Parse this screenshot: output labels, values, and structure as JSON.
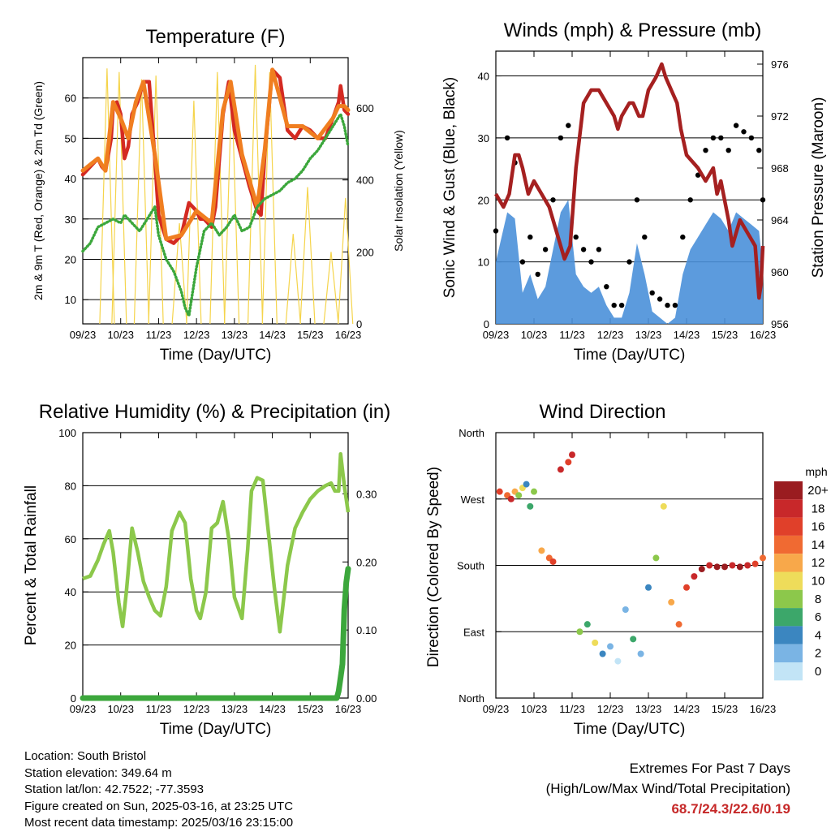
{
  "chart_data": [
    {
      "type": "line",
      "title": "Temperature (F)",
      "xlabel": "Time (Day/UTC)",
      "ylabel": "2m & 9m T (Red, Orange) & 2m Td (Green)",
      "y2label": "Solar Insolation (Yellow)",
      "x_ticks": [
        "09/23",
        "10/23",
        "11/23",
        "12/23",
        "13/23",
        "14/23",
        "15/23",
        "16/23"
      ],
      "ylim": [
        4,
        70
      ],
      "y_ticks": [
        10,
        20,
        30,
        40,
        50,
        60
      ],
      "y2lim": [
        0,
        740
      ],
      "y2_ticks": [
        0,
        200,
        400,
        600
      ],
      "grid": "horizontal",
      "series": [
        {
          "name": "2m T",
          "color": "#d42a22",
          "x": [
            0,
            0.2,
            0.4,
            0.5,
            0.6,
            0.75,
            0.8,
            0.9,
            1.0,
            1.1,
            1.2,
            1.3,
            1.45,
            1.6,
            1.75,
            1.9,
            2.0,
            2.2,
            2.4,
            2.6,
            2.8,
            3.0,
            3.1,
            3.2,
            3.4,
            3.5,
            3.7,
            3.85,
            4.0,
            4.2,
            4.4,
            4.6,
            4.7,
            4.8,
            5.0,
            5.2,
            5.4,
            5.6,
            5.8,
            6.0,
            6.2,
            6.4,
            6.6,
            6.75,
            6.8,
            6.85,
            6.9,
            7.0
          ],
          "y": [
            41,
            43,
            45,
            43,
            42,
            50,
            58,
            59,
            56,
            45,
            48,
            56,
            59,
            64,
            64,
            45,
            31,
            25,
            24,
            26,
            34,
            32,
            30,
            30,
            28,
            33,
            56,
            64,
            52,
            45,
            38,
            32,
            31,
            46,
            67,
            65,
            52,
            50,
            53,
            52,
            50,
            50,
            55,
            59,
            63,
            60,
            57,
            56
          ]
        },
        {
          "name": "9m T",
          "color": "#f07e20",
          "x": [
            0,
            0.4,
            0.6,
            0.8,
            1.0,
            1.2,
            1.4,
            1.6,
            1.9,
            2.2,
            2.6,
            3.0,
            3.4,
            3.7,
            3.9,
            4.2,
            4.6,
            4.8,
            5.0,
            5.4,
            5.8,
            6.2,
            6.6,
            6.75,
            6.9,
            7.0
          ],
          "y": [
            42,
            45,
            42,
            59,
            55,
            50,
            59,
            64,
            46,
            25,
            26,
            32,
            29,
            57,
            64,
            46,
            33,
            47,
            67,
            53,
            53,
            50,
            55,
            58,
            58,
            57
          ]
        },
        {
          "name": "2m Td",
          "color": "#3ca73c",
          "x": [
            0,
            0.2,
            0.4,
            0.6,
            0.8,
            1.0,
            1.1,
            1.3,
            1.5,
            1.7,
            1.9,
            2.0,
            2.2,
            2.4,
            2.6,
            2.7,
            2.8,
            2.9,
            3.0,
            3.2,
            3.4,
            3.6,
            3.8,
            4.0,
            4.2,
            4.4,
            4.6,
            4.8,
            5.0,
            5.2,
            5.4,
            5.6,
            5.8,
            6.0,
            6.2,
            6.4,
            6.6,
            6.8,
            6.9,
            7.0
          ],
          "y": [
            22,
            24,
            28,
            29,
            30,
            29,
            31,
            29,
            27,
            30,
            33,
            26,
            20,
            17,
            12,
            8,
            6,
            12,
            18,
            27,
            29,
            26,
            28,
            31,
            27,
            28,
            33,
            35,
            36,
            37,
            39,
            40,
            42,
            45,
            47,
            50,
            53,
            56,
            53,
            48
          ]
        },
        {
          "name": "Solar Insolation",
          "color": "#f5d44b",
          "axis": "y2",
          "x": [
            0.64,
            0.96,
            1.55,
            1.93,
            2.55,
            2.93,
            3.55,
            3.93,
            4.55,
            4.93,
            5.55,
            5.93,
            6.55,
            6.93
          ],
          "y": [
            710,
            700,
            680,
            690,
            280,
            620,
            700,
            660,
            720,
            700,
            250,
            380,
            200,
            350
          ]
        }
      ]
    },
    {
      "type": "line",
      "title": "Winds (mph) & Pressure (mb)",
      "xlabel": "Time (Day/UTC)",
      "ylabel": "Sonic Wind & Gust (Blue, Black)",
      "y2label": "Station Pressure (Maroon)",
      "x_ticks": [
        "09/23",
        "10/23",
        "11/23",
        "12/23",
        "13/23",
        "14/23",
        "15/23",
        "16/23"
      ],
      "ylim": [
        0,
        44
      ],
      "y_ticks": [
        0,
        10,
        20,
        30,
        40
      ],
      "y2lim": [
        956,
        977
      ],
      "y2_ticks": [
        956,
        960,
        964,
        968,
        972,
        976
      ],
      "grid": "horizontal",
      "series": [
        {
          "name": "Sonic Wind",
          "color": "#4a90d9",
          "x": [
            0,
            0.3,
            0.5,
            0.7,
            0.9,
            1.1,
            1.3,
            1.5,
            1.7,
            1.9,
            2.1,
            2.3,
            2.5,
            2.7,
            2.9,
            3.1,
            3.3,
            3.5,
            3.7,
            3.9,
            4.1,
            4.3,
            4.5,
            4.7,
            4.9,
            5.1,
            5.3,
            5.5,
            5.7,
            5.9,
            6.1,
            6.3,
            6.5,
            6.7,
            6.9,
            7.0
          ],
          "y": [
            10,
            18,
            17,
            5,
            8,
            4,
            6,
            12,
            18,
            20,
            8,
            6,
            5,
            6,
            3,
            1,
            1,
            5,
            13,
            8,
            2,
            1,
            0,
            1,
            8,
            12,
            14,
            16,
            18,
            17,
            15,
            18,
            17,
            16,
            15,
            9
          ]
        },
        {
          "name": "Gust",
          "color": "#000000",
          "x": [
            0,
            0.3,
            0.5,
            0.7,
            0.9,
            1.1,
            1.3,
            1.5,
            1.7,
            1.9,
            2.1,
            2.3,
            2.5,
            2.7,
            2.9,
            3.1,
            3.3,
            3.5,
            3.7,
            3.9,
            4.1,
            4.3,
            4.5,
            4.7,
            4.9,
            5.1,
            5.3,
            5.5,
            5.7,
            5.9,
            6.1,
            6.3,
            6.5,
            6.7,
            6.9,
            7.0
          ],
          "y": [
            15,
            30,
            26,
            10,
            14,
            8,
            12,
            20,
            30,
            32,
            14,
            12,
            10,
            12,
            6,
            3,
            3,
            10,
            20,
            14,
            5,
            4,
            3,
            3,
            14,
            20,
            24,
            28,
            30,
            30,
            28,
            32,
            31,
            30,
            28,
            20
          ]
        },
        {
          "name": "Station Pressure",
          "color": "#a52020",
          "axis": "y2",
          "x": [
            0,
            0.2,
            0.35,
            0.5,
            0.6,
            0.7,
            0.85,
            1.0,
            1.2,
            1.4,
            1.6,
            1.8,
            1.95,
            2.1,
            2.3,
            2.5,
            2.7,
            2.9,
            3.1,
            3.2,
            3.3,
            3.5,
            3.6,
            3.75,
            3.85,
            4.0,
            4.2,
            4.35,
            4.45,
            4.6,
            4.75,
            4.85,
            5.0,
            5.3,
            5.5,
            5.7,
            5.8,
            5.9,
            6.1,
            6.2,
            6.4,
            6.6,
            6.8,
            6.9,
            6.95,
            7.0
          ],
          "y": [
            966,
            965,
            966,
            969,
            969,
            968,
            966,
            967,
            966,
            965,
            963,
            961,
            962,
            968,
            973,
            974,
            974,
            973,
            972,
            971,
            972,
            973,
            973,
            972,
            972,
            974,
            975,
            976,
            975,
            974,
            973,
            971,
            969,
            968,
            967,
            968,
            966,
            967,
            964,
            962,
            964,
            963,
            962,
            958,
            959,
            962
          ]
        }
      ]
    },
    {
      "type": "line",
      "title": "Relative Humidity (%) & Precipitation (in)",
      "xlabel": "Time (Day/UTC)",
      "ylabel": "Percent & Total Rainfall",
      "x_ticks": [
        "09/23",
        "10/23",
        "11/23",
        "12/23",
        "13/23",
        "14/23",
        "15/23",
        "16/23"
      ],
      "ylim": [
        0,
        100
      ],
      "y_ticks": [
        0,
        20,
        40,
        60,
        80,
        100
      ],
      "y2lim": [
        0,
        0.39
      ],
      "y2_ticks": [
        "0.00",
        "0.10",
        "0.20",
        "0.30"
      ],
      "grid": "horizontal",
      "series": [
        {
          "name": "Relative Humidity",
          "color": "#8cc84b",
          "x": [
            0,
            0.2,
            0.4,
            0.55,
            0.7,
            0.8,
            0.95,
            1.05,
            1.15,
            1.3,
            1.45,
            1.6,
            1.75,
            1.9,
            2.05,
            2.2,
            2.35,
            2.55,
            2.7,
            2.85,
            3.0,
            3.1,
            3.25,
            3.4,
            3.55,
            3.7,
            3.85,
            4.0,
            4.2,
            4.35,
            4.45,
            4.6,
            4.75,
            4.9,
            5.05,
            5.2,
            5.4,
            5.6,
            5.8,
            6.0,
            6.2,
            6.4,
            6.55,
            6.65,
            6.75,
            6.8,
            6.9,
            7.0
          ],
          "y": [
            45,
            46,
            52,
            58,
            63,
            55,
            36,
            27,
            40,
            64,
            55,
            44,
            38,
            33,
            31,
            42,
            63,
            70,
            66,
            45,
            33,
            30,
            40,
            64,
            66,
            74,
            60,
            38,
            30,
            56,
            78,
            83,
            82,
            62,
            42,
            25,
            50,
            64,
            70,
            75,
            78,
            80,
            81,
            78,
            78,
            92,
            80,
            70
          ]
        },
        {
          "name": "Total Rainfall",
          "color": "#3ca73c",
          "axis": "y2",
          "x": [
            0,
            1,
            2,
            3,
            4,
            5,
            6,
            6.7,
            6.75,
            6.8,
            6.85,
            6.9,
            6.95,
            7.0
          ],
          "y": [
            0,
            0,
            0,
            0,
            0,
            0,
            0,
            0,
            0.01,
            0.03,
            0.05,
            0.13,
            0.17,
            0.19
          ]
        }
      ]
    },
    {
      "type": "scatter",
      "title": "Wind Direction",
      "xlabel": "Time (Day/UTC)",
      "ylabel": "Direction (Colored By Speed)",
      "x_ticks": [
        "09/23",
        "10/23",
        "11/23",
        "12/23",
        "13/23",
        "14/23",
        "15/23",
        "16/23"
      ],
      "y_ticks": [
        "North",
        "West",
        "South",
        "East",
        "North"
      ],
      "legend": {
        "title": "mph",
        "position": "right",
        "labels": [
          "20+",
          "18",
          "16",
          "14",
          "12",
          "10",
          "8",
          "6",
          "4",
          "2",
          "0"
        ],
        "colors": [
          "#9a1c20",
          "#c8282a",
          "#e0402a",
          "#f06a32",
          "#f8a84a",
          "#eedc5a",
          "#8cc84b",
          "#3ca76a",
          "#3b86c0",
          "#7ab4e4",
          "#c2e4f6"
        ]
      },
      "series": [
        {
          "name": "Wind Direction",
          "x": [
            0.1,
            0.3,
            0.4,
            0.5,
            0.6,
            0.7,
            0.8,
            0.9,
            1.0,
            1.2,
            1.4,
            1.5,
            1.7,
            1.9,
            2.0,
            2.2,
            2.4,
            2.6,
            2.8,
            3.0,
            3.2,
            3.4,
            3.6,
            3.8,
            4.0,
            4.2,
            4.4,
            4.6,
            4.8,
            5.0,
            5.2,
            5.4,
            5.6,
            5.8,
            6.0,
            6.2,
            6.4,
            6.6,
            6.8,
            7.0
          ],
          "y": [
            280,
            275,
            270,
            280,
            275,
            285,
            290,
            260,
            280,
            200,
            190,
            185,
            310,
            320,
            330,
            90,
            100,
            75,
            60,
            70,
            50,
            120,
            80,
            60,
            150,
            190,
            260,
            130,
            100,
            150,
            165,
            175,
            180,
            178,
            178,
            180,
            178,
            180,
            182,
            190
          ],
          "speed": [
            16,
            14,
            18,
            12,
            8,
            10,
            4,
            6,
            8,
            12,
            14,
            16,
            18,
            16,
            18,
            8,
            6,
            10,
            4,
            2,
            0,
            2,
            6,
            2,
            4,
            8,
            10,
            12,
            14,
            16,
            18,
            20,
            18,
            20,
            20,
            18,
            20,
            18,
            16,
            14
          ]
        }
      ]
    }
  ],
  "info": {
    "location": "Location: South Bristol",
    "elevation": "Station elevation: 349.64 m",
    "latlon": "Station lat/lon: 42.7522; -77.3593",
    "created": "Figure created on Sun, 2025-03-16, at 23:25 UTC",
    "recent": "Most recent data timestamp: 2025/03/16 23:15:00"
  },
  "extremes": {
    "title": "Extremes For Past 7 Days",
    "subtitle": "(High/Low/Max Wind/Total Precipitation)",
    "values": "68.7/24.3/22.6/0.19"
  }
}
